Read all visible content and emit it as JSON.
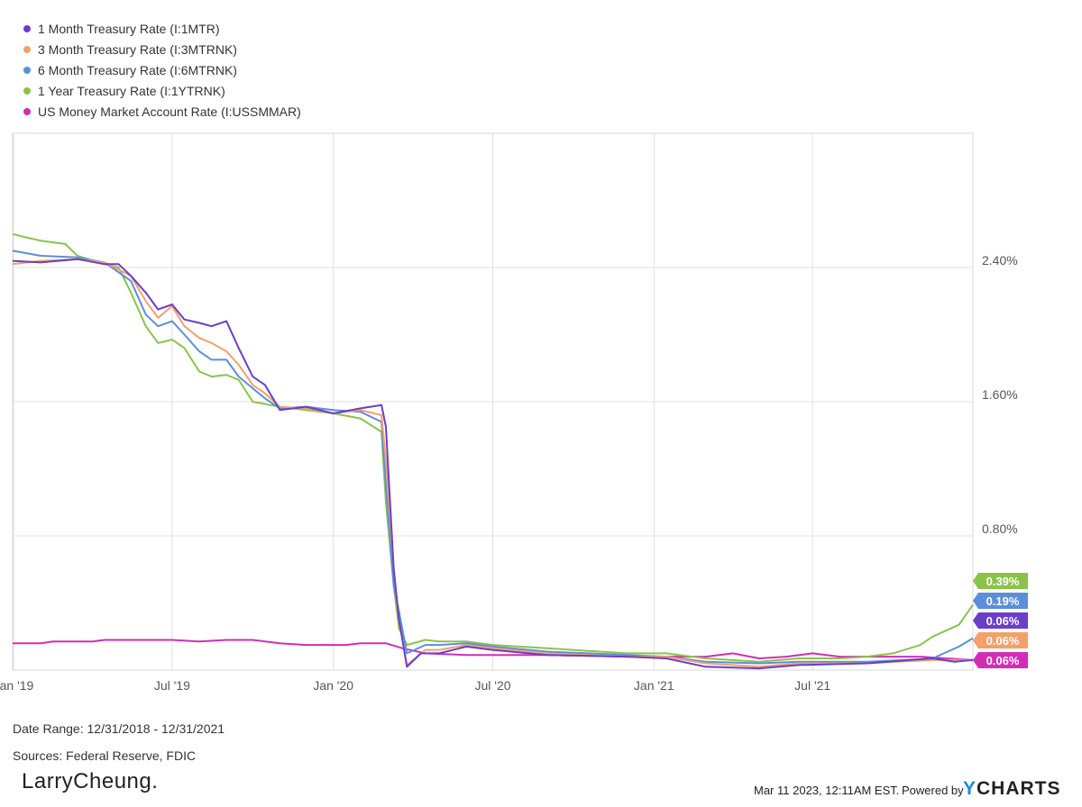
{
  "chart_data": {
    "type": "line",
    "title": "",
    "xlabel": "",
    "ylabel": "",
    "x_range": [
      "2018-12-31",
      "2021-12-31"
    ],
    "ylim": [
      0,
      3.2
    ],
    "grid": true,
    "legend_position": "top-left",
    "y_ticks": [
      {
        "value": 0.8,
        "label": "0.80%"
      },
      {
        "value": 1.6,
        "label": "1.60%"
      },
      {
        "value": 2.4,
        "label": "2.40%"
      }
    ],
    "x_ticks": [
      {
        "date": "2019-01-01",
        "label": "Jan '19"
      },
      {
        "date": "2019-07-01",
        "label": "Jul '19"
      },
      {
        "date": "2020-01-01",
        "label": "Jan '20"
      },
      {
        "date": "2020-07-01",
        "label": "Jul '20"
      },
      {
        "date": "2021-01-01",
        "label": "Jan '21"
      },
      {
        "date": "2021-07-01",
        "label": "Jul '21"
      }
    ],
    "series": [
      {
        "name": "1 Month Treasury Rate (I:1MTR)",
        "color": "#6a3fc8",
        "end_label": "0.06%",
        "points": [
          [
            "2018-12-31",
            2.44
          ],
          [
            "2019-02-01",
            2.43
          ],
          [
            "2019-03-15",
            2.45
          ],
          [
            "2019-04-15",
            2.42
          ],
          [
            "2019-05-01",
            2.42
          ],
          [
            "2019-05-15",
            2.35
          ],
          [
            "2019-06-01",
            2.25
          ],
          [
            "2019-06-15",
            2.15
          ],
          [
            "2019-07-01",
            2.18
          ],
          [
            "2019-07-15",
            2.09
          ],
          [
            "2019-08-01",
            2.07
          ],
          [
            "2019-08-15",
            2.05
          ],
          [
            "2019-09-01",
            2.08
          ],
          [
            "2019-09-15",
            1.92
          ],
          [
            "2019-10-01",
            1.75
          ],
          [
            "2019-10-15",
            1.7
          ],
          [
            "2019-11-01",
            1.55
          ],
          [
            "2019-12-01",
            1.57
          ],
          [
            "2020-01-01",
            1.53
          ],
          [
            "2020-02-01",
            1.56
          ],
          [
            "2020-02-25",
            1.58
          ],
          [
            "2020-03-01",
            1.45
          ],
          [
            "2020-03-10",
            0.6
          ],
          [
            "2020-03-16",
            0.3
          ],
          [
            "2020-03-25",
            0.02
          ],
          [
            "2020-04-10",
            0.1
          ],
          [
            "2020-05-01",
            0.1
          ],
          [
            "2020-06-01",
            0.14
          ],
          [
            "2020-07-01",
            0.12
          ],
          [
            "2020-09-01",
            0.09
          ],
          [
            "2020-12-01",
            0.08
          ],
          [
            "2021-01-15",
            0.07
          ],
          [
            "2021-03-01",
            0.02
          ],
          [
            "2021-05-01",
            0.01
          ],
          [
            "2021-06-15",
            0.03
          ],
          [
            "2021-09-01",
            0.04
          ],
          [
            "2021-11-15",
            0.07
          ],
          [
            "2021-12-10",
            0.05
          ],
          [
            "2021-12-31",
            0.06
          ]
        ]
      },
      {
        "name": "3 Month Treasury Rate (I:3MTRNK)",
        "color": "#f4a06b",
        "end_label": "0.06%",
        "points": [
          [
            "2018-12-31",
            2.42
          ],
          [
            "2019-02-01",
            2.44
          ],
          [
            "2019-03-15",
            2.45
          ],
          [
            "2019-04-15",
            2.43
          ],
          [
            "2019-05-15",
            2.35
          ],
          [
            "2019-06-01",
            2.2
          ],
          [
            "2019-06-15",
            2.1
          ],
          [
            "2019-07-01",
            2.17
          ],
          [
            "2019-07-15",
            2.05
          ],
          [
            "2019-08-01",
            1.98
          ],
          [
            "2019-08-15",
            1.95
          ],
          [
            "2019-09-01",
            1.9
          ],
          [
            "2019-09-15",
            1.82
          ],
          [
            "2019-10-01",
            1.7
          ],
          [
            "2019-10-15",
            1.65
          ],
          [
            "2019-11-01",
            1.57
          ],
          [
            "2019-12-01",
            1.56
          ],
          [
            "2020-01-01",
            1.53
          ],
          [
            "2020-02-01",
            1.55
          ],
          [
            "2020-02-25",
            1.52
          ],
          [
            "2020-03-01",
            1.25
          ],
          [
            "2020-03-10",
            0.6
          ],
          [
            "2020-03-16",
            0.3
          ],
          [
            "2020-03-25",
            0.03
          ],
          [
            "2020-04-15",
            0.12
          ],
          [
            "2020-05-01",
            0.12
          ],
          [
            "2020-06-01",
            0.15
          ],
          [
            "2020-07-01",
            0.13
          ],
          [
            "2020-09-01",
            0.1
          ],
          [
            "2020-12-01",
            0.08
          ],
          [
            "2021-01-15",
            0.08
          ],
          [
            "2021-03-01",
            0.04
          ],
          [
            "2021-05-01",
            0.02
          ],
          [
            "2021-06-15",
            0.04
          ],
          [
            "2021-09-01",
            0.04
          ],
          [
            "2021-11-15",
            0.06
          ],
          [
            "2021-12-31",
            0.06
          ]
        ]
      },
      {
        "name": "6 Month Treasury Rate (I:6MTRNK)",
        "color": "#5b8fd9",
        "end_label": "0.19%",
        "points": [
          [
            "2018-12-31",
            2.5
          ],
          [
            "2019-02-01",
            2.47
          ],
          [
            "2019-03-15",
            2.46
          ],
          [
            "2019-04-15",
            2.43
          ],
          [
            "2019-05-15",
            2.32
          ],
          [
            "2019-06-01",
            2.12
          ],
          [
            "2019-06-15",
            2.05
          ],
          [
            "2019-07-01",
            2.08
          ],
          [
            "2019-07-15",
            2.0
          ],
          [
            "2019-08-01",
            1.9
          ],
          [
            "2019-08-15",
            1.85
          ],
          [
            "2019-09-01",
            1.85
          ],
          [
            "2019-09-15",
            1.75
          ],
          [
            "2019-10-01",
            1.68
          ],
          [
            "2019-10-15",
            1.62
          ],
          [
            "2019-11-01",
            1.56
          ],
          [
            "2019-12-01",
            1.57
          ],
          [
            "2020-01-01",
            1.55
          ],
          [
            "2020-02-01",
            1.54
          ],
          [
            "2020-02-25",
            1.48
          ],
          [
            "2020-03-01",
            1.1
          ],
          [
            "2020-03-10",
            0.5
          ],
          [
            "2020-03-16",
            0.35
          ],
          [
            "2020-03-25",
            0.1
          ],
          [
            "2020-04-15",
            0.15
          ],
          [
            "2020-05-01",
            0.15
          ],
          [
            "2020-06-01",
            0.16
          ],
          [
            "2020-07-01",
            0.14
          ],
          [
            "2020-09-01",
            0.11
          ],
          [
            "2020-12-01",
            0.09
          ],
          [
            "2021-01-15",
            0.08
          ],
          [
            "2021-03-01",
            0.05
          ],
          [
            "2021-05-01",
            0.04
          ],
          [
            "2021-06-15",
            0.05
          ],
          [
            "2021-09-01",
            0.05
          ],
          [
            "2021-10-15",
            0.06
          ],
          [
            "2021-11-15",
            0.07
          ],
          [
            "2021-12-15",
            0.14
          ],
          [
            "2021-12-31",
            0.19
          ]
        ]
      },
      {
        "name": "1 Year Treasury Rate (I:1YTRNK)",
        "color": "#8bc34a",
        "end_label": "0.39%",
        "points": [
          [
            "2018-12-31",
            2.6
          ],
          [
            "2019-01-15",
            2.58
          ],
          [
            "2019-02-01",
            2.56
          ],
          [
            "2019-03-01",
            2.54
          ],
          [
            "2019-03-15",
            2.47
          ],
          [
            "2019-04-15",
            2.42
          ],
          [
            "2019-05-01",
            2.4
          ],
          [
            "2019-05-15",
            2.25
          ],
          [
            "2019-06-01",
            2.05
          ],
          [
            "2019-06-15",
            1.95
          ],
          [
            "2019-07-01",
            1.97
          ],
          [
            "2019-07-15",
            1.92
          ],
          [
            "2019-08-01",
            1.78
          ],
          [
            "2019-08-15",
            1.75
          ],
          [
            "2019-09-01",
            1.76
          ],
          [
            "2019-09-15",
            1.73
          ],
          [
            "2019-10-01",
            1.6
          ],
          [
            "2019-11-01",
            1.57
          ],
          [
            "2019-12-01",
            1.55
          ],
          [
            "2020-01-01",
            1.53
          ],
          [
            "2020-02-01",
            1.5
          ],
          [
            "2020-02-25",
            1.42
          ],
          [
            "2020-03-01",
            1.0
          ],
          [
            "2020-03-10",
            0.5
          ],
          [
            "2020-03-16",
            0.25
          ],
          [
            "2020-03-25",
            0.15
          ],
          [
            "2020-04-15",
            0.18
          ],
          [
            "2020-05-01",
            0.17
          ],
          [
            "2020-06-01",
            0.17
          ],
          [
            "2020-07-01",
            0.15
          ],
          [
            "2020-09-01",
            0.13
          ],
          [
            "2020-12-01",
            0.1
          ],
          [
            "2021-01-15",
            0.1
          ],
          [
            "2021-03-01",
            0.07
          ],
          [
            "2021-05-01",
            0.05
          ],
          [
            "2021-06-15",
            0.07
          ],
          [
            "2021-08-01",
            0.07
          ],
          [
            "2021-09-01",
            0.08
          ],
          [
            "2021-10-01",
            0.1
          ],
          [
            "2021-11-01",
            0.15
          ],
          [
            "2021-11-15",
            0.2
          ],
          [
            "2021-12-15",
            0.27
          ],
          [
            "2021-12-31",
            0.39
          ]
        ]
      },
      {
        "name": "US Money Market Account Rate (I:USSMMAR)",
        "color": "#d12eb6",
        "end_label": "0.06%",
        "points": [
          [
            "2018-12-31",
            0.16
          ],
          [
            "2019-02-01",
            0.16
          ],
          [
            "2019-02-15",
            0.17
          ],
          [
            "2019-04-01",
            0.17
          ],
          [
            "2019-04-15",
            0.18
          ],
          [
            "2019-05-15",
            0.18
          ],
          [
            "2019-06-01",
            0.18
          ],
          [
            "2019-07-01",
            0.18
          ],
          [
            "2019-08-01",
            0.17
          ],
          [
            "2019-09-01",
            0.18
          ],
          [
            "2019-10-01",
            0.18
          ],
          [
            "2019-11-01",
            0.16
          ],
          [
            "2019-12-01",
            0.15
          ],
          [
            "2020-01-01",
            0.15
          ],
          [
            "2020-01-15",
            0.15
          ],
          [
            "2020-02-01",
            0.16
          ],
          [
            "2020-03-01",
            0.16
          ],
          [
            "2020-03-20",
            0.13
          ],
          [
            "2020-04-15",
            0.1
          ],
          [
            "2020-06-01",
            0.09
          ],
          [
            "2020-09-01",
            0.09
          ],
          [
            "2020-12-01",
            0.08
          ],
          [
            "2021-01-15",
            0.08
          ],
          [
            "2021-03-01",
            0.08
          ],
          [
            "2021-04-01",
            0.1
          ],
          [
            "2021-05-01",
            0.07
          ],
          [
            "2021-06-01",
            0.08
          ],
          [
            "2021-07-01",
            0.1
          ],
          [
            "2021-08-01",
            0.08
          ],
          [
            "2021-10-01",
            0.08
          ],
          [
            "2021-11-01",
            0.08
          ],
          [
            "2021-12-01",
            0.07
          ],
          [
            "2021-12-31",
            0.06
          ]
        ]
      }
    ]
  },
  "footer": {
    "date_range": "Date Range: 12/31/2018 - 12/31/2021",
    "sources": "Sources: Federal Reserve, FDIC",
    "brand": "LarryCheung.",
    "timestamp": "Mar 11 2023, 12:11AM EST.",
    "powered_by": "Powered by",
    "ycharts_y": "Y",
    "ycharts_rest": "CHARTS"
  }
}
